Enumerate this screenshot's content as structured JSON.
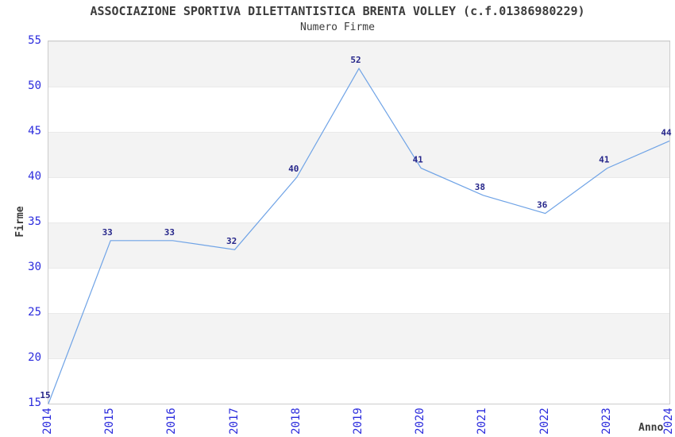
{
  "title": "ASSOCIAZIONE SPORTIVA DILETTANTISTICA BRENTA VOLLEY (c.f.01386980229)",
  "subtitle": "Numero Firme",
  "chart_data": {
    "type": "line",
    "x": [
      "2014",
      "2015",
      "2016",
      "2017",
      "2018",
      "2019",
      "2020",
      "2021",
      "2022",
      "2023",
      "2024"
    ],
    "values": [
      15,
      33,
      33,
      32,
      40,
      52,
      41,
      38,
      36,
      41,
      44
    ],
    "series": [
      {
        "name": "Numero Firme",
        "values": [
          15,
          33,
          33,
          32,
          40,
          52,
          41,
          38,
          36,
          41,
          44
        ]
      }
    ],
    "title": "ASSOCIAZIONE SPORTIVA DILETTANTISTICA BRENTA VOLLEY (c.f.01386980229)",
    "subtitle": "Numero Firme",
    "xlabel": "Anno",
    "ylabel": "Firme",
    "ylim": [
      15,
      55
    ],
    "yticks": [
      15,
      20,
      25,
      30,
      35,
      40,
      45,
      50,
      55
    ],
    "grid": "horizontal-alternating-bands",
    "legend_position": "none",
    "data_labels_shown": true,
    "colors": {
      "line": "#6fa3e6",
      "tick_label": "#2b2bdd",
      "value_label": "#26268a",
      "band_gray": "#f3f3f3",
      "band_white": "#ffffff",
      "plot_border": "#cccccc",
      "title_text": "#3c3c3c"
    }
  }
}
